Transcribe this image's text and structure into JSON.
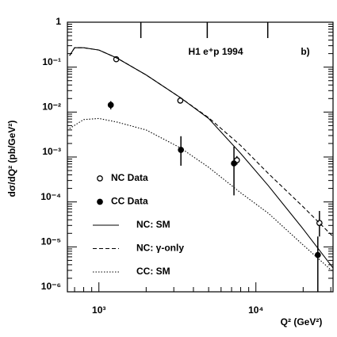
{
  "chart_data": {
    "type": "line",
    "annotation": "H1  e⁺p 1994",
    "panel_label": "b)",
    "x_label": "Q² (GeV²)",
    "y_label": "dσ/dQ² (pb/GeV²)",
    "xlog": true,
    "ylog": true,
    "xlim": [
      630,
      31000
    ],
    "ylim": [
      1e-06,
      1
    ],
    "xticks": [
      {
        "value": 1000,
        "label": "10³"
      },
      {
        "value": 10000,
        "label": "10⁴"
      }
    ],
    "yticks": [
      1,
      {
        "value": 0.1,
        "label": "10⁻¹"
      },
      {
        "value": 0.01,
        "label": "10⁻²"
      },
      {
        "value": 0.001,
        "label": "10⁻³"
      },
      {
        "value": 0.0001,
        "label": "10⁻⁴"
      },
      {
        "value": 1e-05,
        "label": "10⁻⁵"
      },
      {
        "value": 1e-06,
        "label": "10⁻⁶"
      }
    ],
    "bin_edges": [
      1850,
      4900,
      11900
    ],
    "series": [
      {
        "name": "NC Data",
        "color": "#000000",
        "style": "open",
        "x": [
          1290,
          3300,
          7570,
          25400
        ],
        "values": [
          0.15,
          0.018,
          0.00085,
          3.4e-05
        ],
        "lower": [
          0.135,
          0.016,
          0.00068,
          1.7e-05
        ],
        "upper": [
          0.165,
          0.02,
          0.00105,
          6.3e-05
        ]
      },
      {
        "name": "CC Data",
        "color": "#000000",
        "style": "filled",
        "x": [
          1190,
          3330,
          7250,
          24800
        ],
        "values": [
          0.0144,
          0.00144,
          0.00072,
          6.6e-06
        ],
        "lower": [
          0.0115,
          0.00064,
          0.00014,
          1e-06
        ],
        "upper": [
          0.0175,
          0.0029,
          0.0017,
          1.7e-05
        ]
      },
      {
        "name": "NC: SM",
        "color": "#000000",
        "style": "solid",
        "x": [
          650,
          700,
          800,
          1000,
          1300,
          2000,
          3300,
          5000,
          8000,
          12000,
          20000,
          31000
        ],
        "values": [
          0.18,
          0.27,
          0.27,
          0.24,
          0.16,
          0.067,
          0.021,
          0.0072,
          0.0012,
          0.00023,
          2.5e-05,
          3.4e-06
        ]
      },
      {
        "name": "NC: γ-only",
        "color": "#000000",
        "style": "dashed",
        "x": [
          650,
          700,
          800,
          1000,
          1300,
          2000,
          3300,
          5000,
          8000,
          12000,
          20000,
          31000
        ],
        "values": [
          0.18,
          0.27,
          0.27,
          0.24,
          0.16,
          0.067,
          0.021,
          0.0075,
          0.0018,
          0.00043,
          7.8e-05,
          1.7e-05
        ]
      },
      {
        "name": "CC: SM",
        "color": "#000000",
        "style": "dotted",
        "x": [
          650,
          800,
          1000,
          1300,
          2000,
          3300,
          5000,
          8000,
          12000,
          20000,
          31000
        ],
        "values": [
          0.0043,
          0.0068,
          0.0072,
          0.006,
          0.004,
          0.0016,
          0.00059,
          0.00016,
          5.6e-05,
          1.1e-05,
          2.8e-06
        ]
      }
    ]
  }
}
